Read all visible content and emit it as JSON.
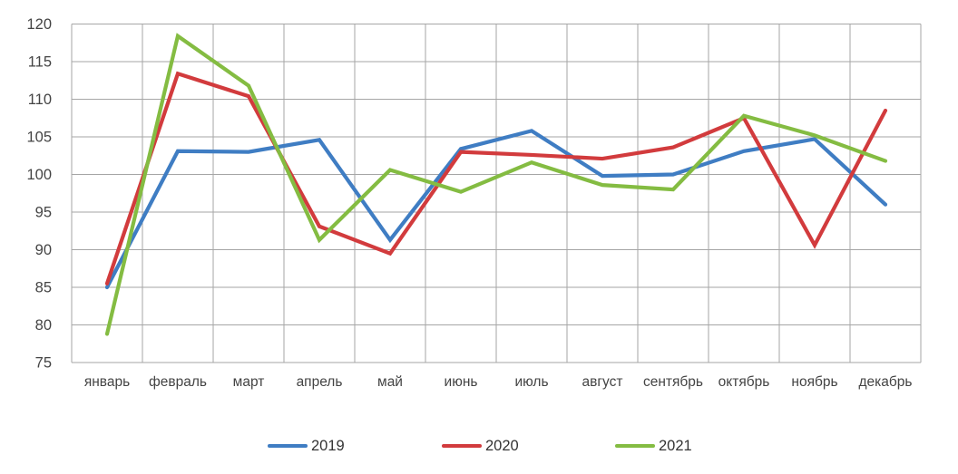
{
  "chart_data": {
    "type": "line",
    "title": "",
    "xlabel": "",
    "ylabel": "",
    "categories": [
      "январь",
      "февраль",
      "март",
      "апрель",
      "май",
      "июнь",
      "июль",
      "август",
      "сентябрь",
      "октябрь",
      "ноябрь",
      "декабрь"
    ],
    "series": [
      {
        "name": "2019",
        "color": "#3F7DC3",
        "values": [
          85.0,
          103.1,
          103.0,
          104.6,
          91.3,
          103.4,
          105.8,
          99.8,
          100.0,
          103.1,
          104.7,
          96.0
        ]
      },
      {
        "name": "2020",
        "color": "#D23B3D",
        "values": [
          85.5,
          113.4,
          110.4,
          93.1,
          89.5,
          103.0,
          102.6,
          102.1,
          103.6,
          107.5,
          90.6,
          108.5
        ]
      },
      {
        "name": "2021",
        "color": "#84BC42",
        "values": [
          78.8,
          118.4,
          111.8,
          91.3,
          100.6,
          97.7,
          101.6,
          98.6,
          98.0,
          107.8,
          105.2,
          101.8
        ]
      }
    ],
    "ylim": [
      75,
      120
    ],
    "ytick_step": 5,
    "grid": true,
    "gridline_color": "#A6A6A6",
    "axis_label_color": "#444444",
    "legend_position": "bottom"
  }
}
